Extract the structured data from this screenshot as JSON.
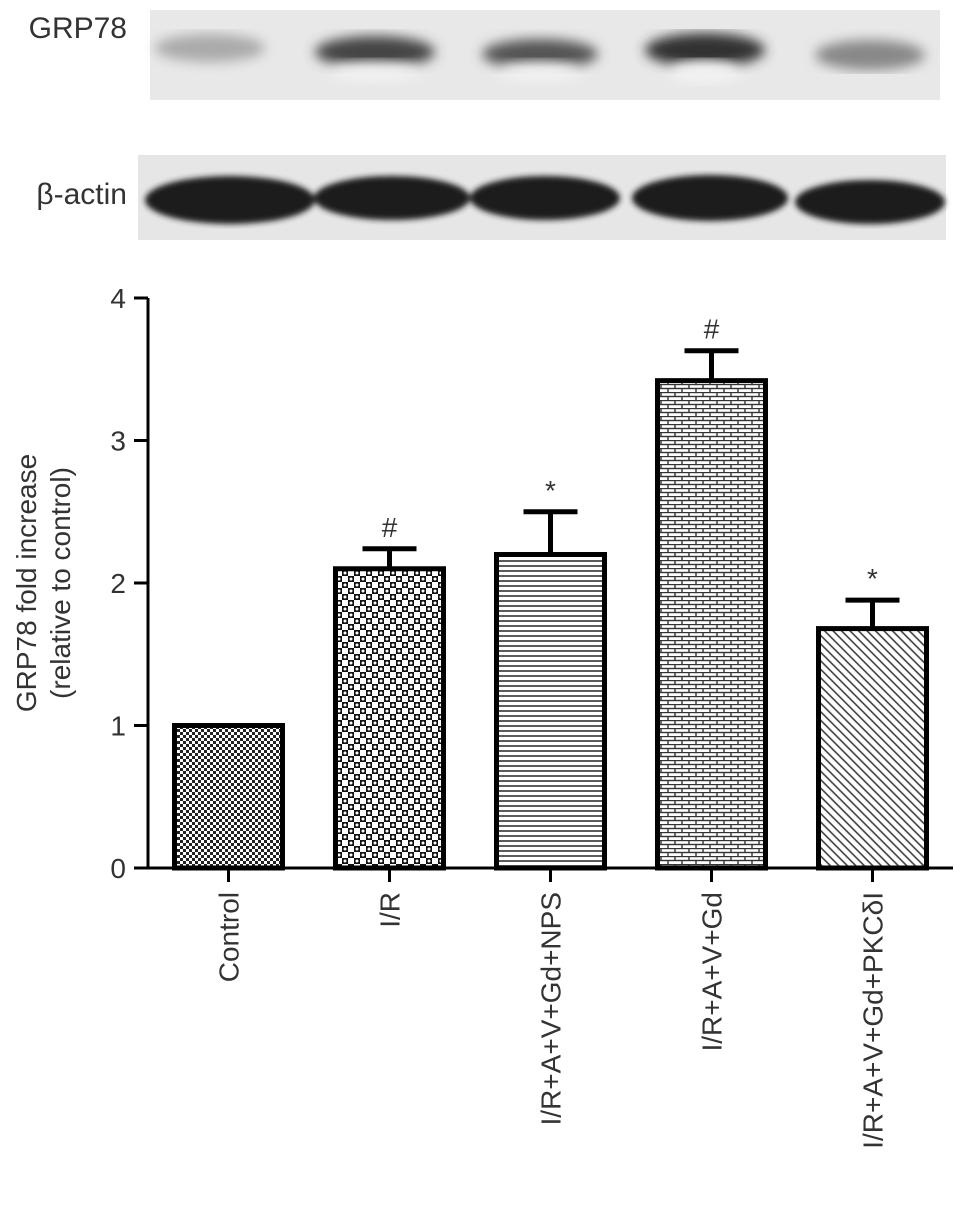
{
  "blots": [
    {
      "label": "GRP78"
    },
    {
      "label": "β-actin"
    }
  ],
  "chart_data": {
    "type": "bar",
    "y_label": [
      "GRP78 fold increase",
      "(relative to control)"
    ],
    "categories": [
      "Control",
      "I/R",
      "I/R+A+V+Gd+NPS",
      "I/R+A+V+Gd",
      "I/R+A+V+Gd+PKCδI"
    ],
    "values": [
      1.0,
      2.1,
      2.2,
      3.42,
      1.68
    ],
    "errors": [
      0,
      0.14,
      0.3,
      0.21,
      0.2
    ],
    "annotations": [
      null,
      "#",
      "*",
      "#",
      "*"
    ],
    "color": "#000000",
    "ylim": [
      0,
      4
    ],
    "yticks": [
      0,
      1,
      2,
      3,
      4
    ],
    "grid": false
  }
}
